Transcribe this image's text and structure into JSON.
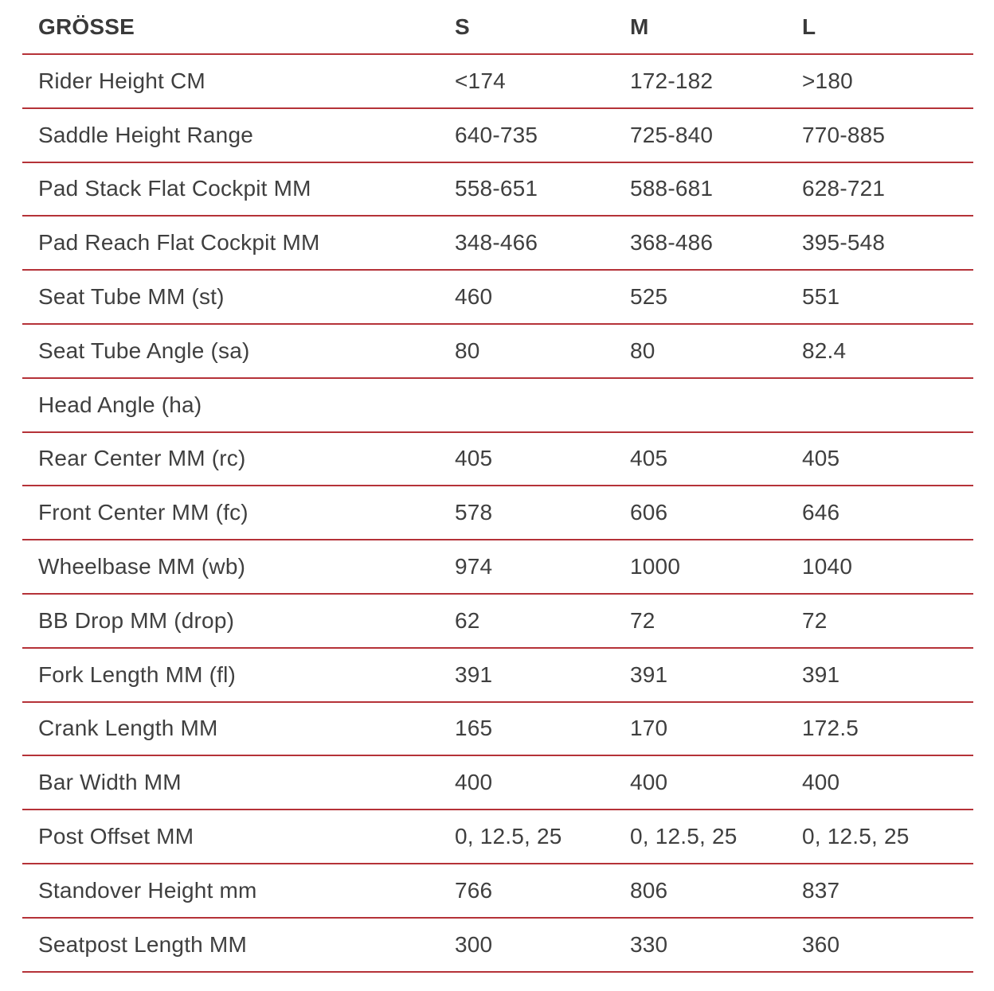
{
  "table": {
    "colors": {
      "divider_red": "#b53238",
      "text": "#3f3f3f",
      "background": "#ffffff"
    },
    "header": {
      "label": "GRÖSSE",
      "s": "S",
      "m": "M",
      "l": "L"
    },
    "rows": [
      {
        "label": "Rider Height CM",
        "s": "<174",
        "m": "172-182",
        "l": ">180"
      },
      {
        "label": "Saddle Height Range",
        "s": "640-735",
        "m": "725-840",
        "l": "770-885"
      },
      {
        "label": "Pad Stack Flat Cockpit MM",
        "s": "558-651",
        "m": "588-681",
        "l": "628-721"
      },
      {
        "label": "Pad Reach Flat Cockpit MM",
        "s": "348-466",
        "m": "368-486",
        "l": "395-548"
      },
      {
        "label": "Seat Tube MM (st)",
        "s": "460",
        "m": "525",
        "l": "551"
      },
      {
        "label": "Seat Tube Angle (sa)",
        "s": "80",
        "m": "80",
        "l": "82.4"
      },
      {
        "label": "Head Angle (ha)",
        "s": "",
        "m": "",
        "l": ""
      },
      {
        "label": "Rear Center MM (rc)",
        "s": "405",
        "m": "405",
        "l": "405"
      },
      {
        "label": "Front Center MM (fc)",
        "s": "578",
        "m": "606",
        "l": "646"
      },
      {
        "label": "Wheelbase MM (wb)",
        "s": "974",
        "m": "1000",
        "l": "1040"
      },
      {
        "label": "BB Drop MM (drop)",
        "s": "62",
        "m": "72",
        "l": "72"
      },
      {
        "label": "Fork Length MM (fl)",
        "s": "391",
        "m": "391",
        "l": "391"
      },
      {
        "label": "Crank Length MM",
        "s": "165",
        "m": "170",
        "l": "172.5"
      },
      {
        "label": "Bar Width MM",
        "s": "400",
        "m": "400",
        "l": "400"
      },
      {
        "label": "Post Offset MM",
        "s": "0, 12.5, 25",
        "m": "0, 12.5, 25",
        "l": "0, 12.5, 25"
      },
      {
        "label": "Standover Height mm",
        "s": "766",
        "m": "806",
        "l": "837"
      },
      {
        "label": "Seatpost Length MM",
        "s": "300",
        "m": "330",
        "l": "360"
      }
    ]
  }
}
